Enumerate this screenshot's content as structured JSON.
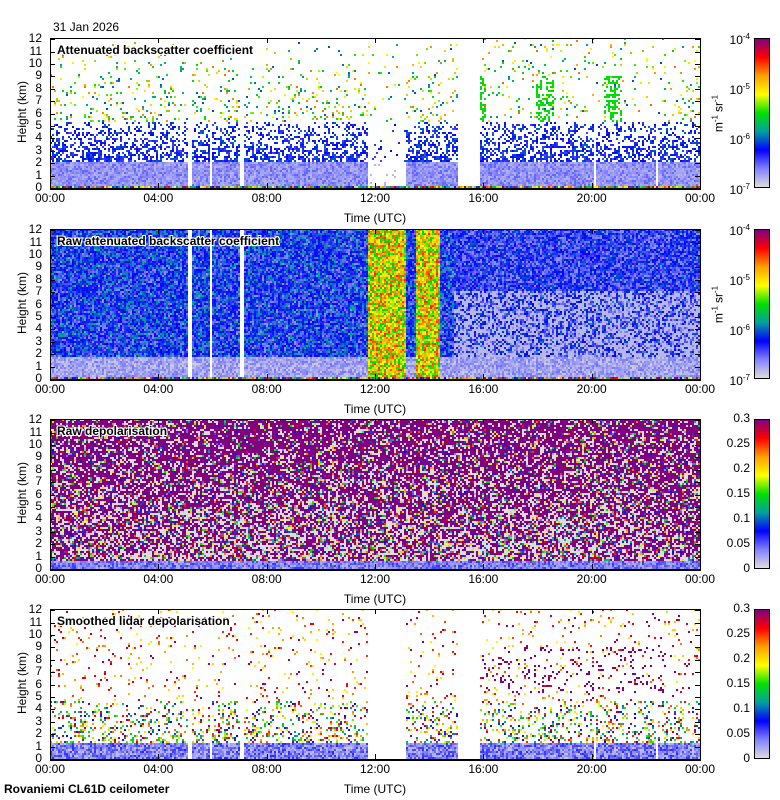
{
  "header": {
    "date": "31 Jan 2026"
  },
  "footer": {
    "station": "Rovaniemi CL61D ceilometer"
  },
  "chart_data": [
    {
      "type": "heatmap",
      "title": "Attenuated backscatter coefficient",
      "xlabel": "Time (UTC)",
      "ylabel": "Height (km)",
      "x_ticks": [
        "00:00",
        "04:00",
        "08:00",
        "12:00",
        "16:00",
        "20:00",
        "00:00"
      ],
      "y_ticks": [
        "0",
        "1",
        "2",
        "3",
        "4",
        "5",
        "6",
        "7",
        "8",
        "9",
        "10",
        "11",
        "12"
      ],
      "ylim": [
        0,
        12
      ],
      "colorbar": {
        "scale": "log",
        "range": [
          1e-07,
          0.0001
        ],
        "ticks": [
          {
            "base": "10",
            "exp": "-7"
          },
          {
            "base": "10",
            "exp": "-6"
          },
          {
            "base": "10",
            "exp": "-5"
          },
          {
            "base": "10",
            "exp": "-4"
          }
        ],
        "unit": {
          "m": "m",
          "mexp": "-1",
          "sr": "sr",
          "srexp": "-1"
        }
      },
      "colormap": [
        "#dcdcdc",
        "#8080ff",
        "#0000ff",
        "#00a0a0",
        "#00e000",
        "#ffff00",
        "#ffa000",
        "#ff0000",
        "#800080"
      ],
      "style": "sparse"
    },
    {
      "type": "heatmap",
      "title": "Raw attenuated backscatter coefficient",
      "xlabel": "Time (UTC)",
      "ylabel": "Height (km)",
      "x_ticks": [
        "00:00",
        "04:00",
        "08:00",
        "12:00",
        "16:00",
        "20:00",
        "00:00"
      ],
      "y_ticks": [
        "0",
        "1",
        "2",
        "3",
        "4",
        "5",
        "6",
        "7",
        "8",
        "9",
        "10",
        "11",
        "12"
      ],
      "ylim": [
        0,
        12
      ],
      "colorbar": {
        "scale": "log",
        "range": [
          1e-07,
          0.0001
        ],
        "ticks": [
          {
            "base": "10",
            "exp": "-7"
          },
          {
            "base": "10",
            "exp": "-6"
          },
          {
            "base": "10",
            "exp": "-5"
          },
          {
            "base": "10",
            "exp": "-4"
          }
        ],
        "unit": {
          "m": "m",
          "mexp": "-1",
          "sr": "sr",
          "srexp": "-1"
        }
      },
      "colormap": [
        "#dcdcdc",
        "#8080ff",
        "#0000ff",
        "#00a0a0",
        "#00e000",
        "#ffff00",
        "#ffa000",
        "#ff0000",
        "#800080"
      ],
      "style": "raw"
    },
    {
      "type": "heatmap",
      "title": "Raw depolarisation",
      "xlabel": "Time (UTC)",
      "ylabel": "Height (km)",
      "x_ticks": [
        "00:00",
        "04:00",
        "08:00",
        "12:00",
        "16:00",
        "20:00",
        "00:00"
      ],
      "y_ticks": [
        "0",
        "1",
        "2",
        "3",
        "4",
        "5",
        "6",
        "7",
        "8",
        "9",
        "10",
        "11",
        "12"
      ],
      "ylim": [
        0,
        12
      ],
      "colorbar": {
        "scale": "linear",
        "range": [
          0,
          0.3
        ],
        "ticks": [
          {
            "base": "0"
          },
          {
            "base": "0.05"
          },
          {
            "base": "0.1"
          },
          {
            "base": "0.15"
          },
          {
            "base": "0.2"
          },
          {
            "base": "0.25"
          },
          {
            "base": "0.3"
          }
        ]
      },
      "colormap": [
        "#dcdcdc",
        "#8080ff",
        "#0000ff",
        "#00a0a0",
        "#00e000",
        "#ffff00",
        "#ffa000",
        "#ff0000",
        "#800080"
      ],
      "style": "depol"
    },
    {
      "type": "heatmap",
      "title": "Smoothed lidar depolarisation",
      "xlabel": "Time (UTC)",
      "ylabel": "Height (km)",
      "x_ticks": [
        "00:00",
        "04:00",
        "08:00",
        "12:00",
        "16:00",
        "20:00",
        "00:00"
      ],
      "y_ticks": [
        "0",
        "1",
        "2",
        "3",
        "4",
        "5",
        "6",
        "7",
        "8",
        "9",
        "10",
        "11",
        "12"
      ],
      "ylim": [
        0,
        12
      ],
      "colorbar": {
        "scale": "linear",
        "range": [
          0,
          0.3
        ],
        "ticks": [
          {
            "base": "0"
          },
          {
            "base": "0.05"
          },
          {
            "base": "0.1"
          },
          {
            "base": "0.15"
          },
          {
            "base": "0.2"
          },
          {
            "base": "0.25"
          },
          {
            "base": "0.3"
          }
        ]
      },
      "colormap": [
        "#dcdcdc",
        "#8080ff",
        "#0000ff",
        "#00a0a0",
        "#00e000",
        "#ffff00",
        "#ffa000",
        "#ff0000",
        "#800080"
      ],
      "style": "smooth"
    }
  ]
}
